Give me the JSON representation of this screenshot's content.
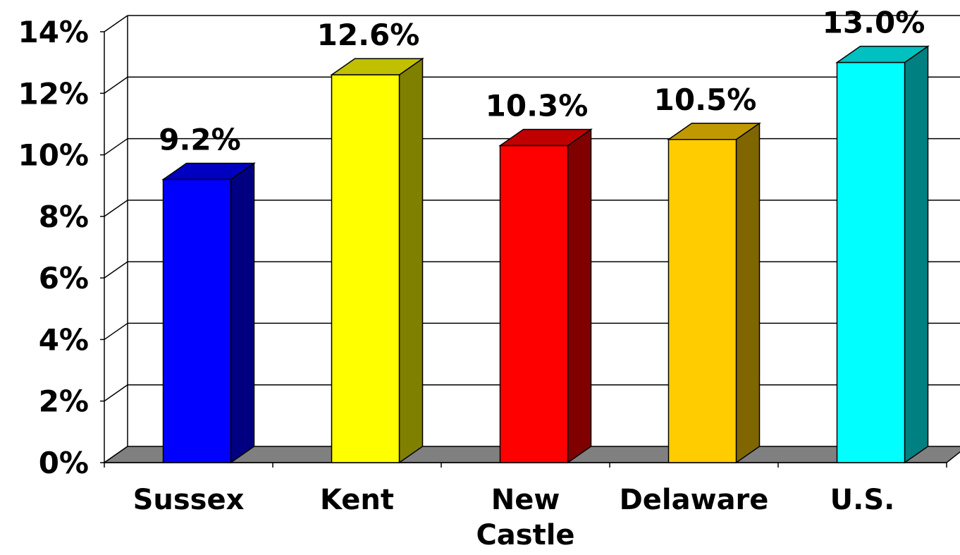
{
  "chart_data": {
    "type": "bar",
    "title": "",
    "xlabel": "",
    "ylabel": "",
    "categories": [
      [
        "Sussex"
      ],
      [
        "Kent"
      ],
      [
        "New",
        "Castle"
      ],
      [
        "Delaware"
      ],
      [
        "U.S."
      ]
    ],
    "values": [
      9.2,
      12.6,
      10.3,
      10.5,
      13.0
    ],
    "value_labels": [
      "9.2%",
      "12.6%",
      "10.3%",
      "10.5%",
      "13.0%"
    ],
    "ylim": [
      0,
      14
    ],
    "yticks": [
      0,
      2,
      4,
      6,
      8,
      10,
      12,
      14
    ],
    "ytick_labels": [
      "0%",
      "2%",
      "4%",
      "6%",
      "8%",
      "10%",
      "12%",
      "14%"
    ],
    "grid": true,
    "three_d": true,
    "bar_colors": [
      {
        "front": "#0000FF",
        "side": "#000080",
        "top": "#0000C0"
      },
      {
        "front": "#FFFF00",
        "side": "#808000",
        "top": "#C0C000"
      },
      {
        "front": "#FF0000",
        "side": "#800000",
        "top": "#C00000"
      },
      {
        "front": "#FFCC00",
        "side": "#806600",
        "top": "#C09900"
      },
      {
        "front": "#00FFFF",
        "side": "#008080",
        "top": "#00C0C0"
      }
    ],
    "floor_color": "#808080"
  }
}
